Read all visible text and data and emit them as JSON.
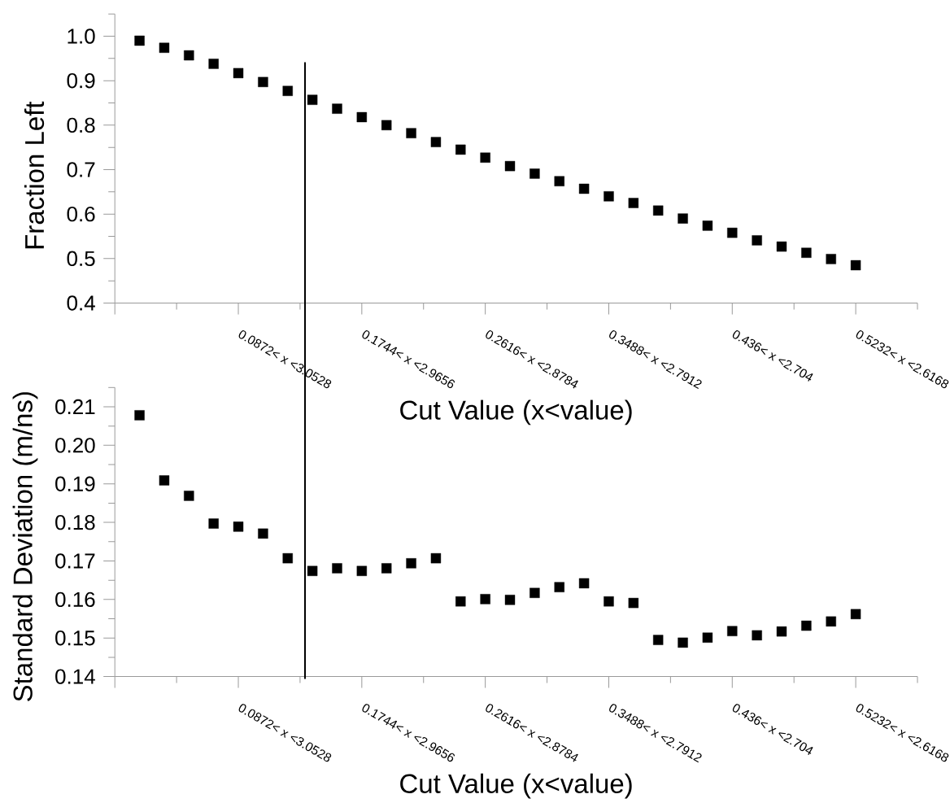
{
  "chart_data": [
    {
      "type": "scatter",
      "ylabel": "Fraction Left",
      "xlabel": "Cut Value (x<value)",
      "color": "#000000",
      "marker": "square",
      "categories": [
        null,
        null,
        null,
        null,
        "0.0872< x <3.0528",
        null,
        null,
        null,
        null,
        "0.1744< x <2.9656",
        null,
        null,
        null,
        null,
        "0.2616< x <2.8784",
        null,
        null,
        null,
        null,
        "0.3488< x <2.7912",
        null,
        null,
        null,
        null,
        "0.436< x <2.704",
        null,
        null,
        null,
        null,
        "0.5232< x <2.6168"
      ],
      "values": [
        0.99,
        0.974,
        0.957,
        0.938,
        0.917,
        0.897,
        0.877,
        0.857,
        0.837,
        0.818,
        0.8,
        0.782,
        0.762,
        0.745,
        0.727,
        0.708,
        0.691,
        0.674,
        0.657,
        0.64,
        0.625,
        0.608,
        0.59,
        0.574,
        0.558,
        0.541,
        0.527,
        0.513,
        0.499,
        0.485
      ],
      "ylim": [
        0.4,
        1.05
      ],
      "yticks": [
        0.4,
        0.5,
        0.6,
        0.7,
        0.8,
        0.9,
        {
          "value": 1.0,
          "label": "1.0"
        }
      ]
    },
    {
      "type": "scatter",
      "ylabel": "Standard Deviation (m/ns)",
      "xlabel": "Cut Value (x<value)",
      "color": "#000000",
      "marker": "square",
      "categories": [
        null,
        null,
        null,
        null,
        "0.0872< x <3.0528",
        null,
        null,
        null,
        null,
        "0.1744< x <2.9656",
        null,
        null,
        null,
        null,
        "0.2616< x <2.8784",
        null,
        null,
        null,
        null,
        "0.3488< x <2.7912",
        null,
        null,
        null,
        null,
        "0.436< x <2.704",
        null,
        null,
        null,
        null,
        "0.5232< x <2.6168"
      ],
      "values": [
        0.2078,
        0.1909,
        0.1869,
        0.1797,
        0.1789,
        0.1771,
        0.1707,
        0.1674,
        0.1681,
        0.1674,
        0.1681,
        0.1694,
        0.1707,
        0.1595,
        0.1601,
        0.1599,
        0.1617,
        0.1632,
        0.1642,
        0.1595,
        0.1591,
        0.1495,
        0.1488,
        0.1501,
        0.1518,
        0.1507,
        0.1517,
        0.1532,
        0.1543,
        0.1562
      ],
      "ylim": [
        0.14,
        0.215
      ],
      "yticks": [
        0.14,
        0.15,
        0.16,
        0.17,
        0.18,
        0.19,
        {
          "value": 0.2,
          "label": "0.20"
        },
        0.21
      ]
    }
  ]
}
